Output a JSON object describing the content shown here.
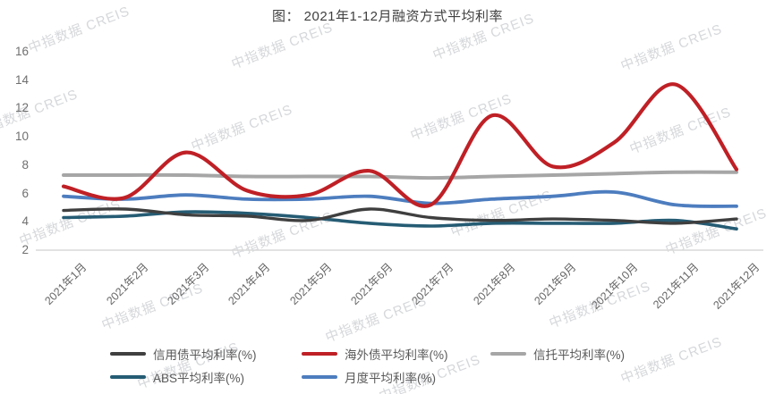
{
  "watermark": {
    "text": "中指数据 CREIS"
  },
  "chart_data": {
    "type": "line",
    "title": "图： 2021年1-12月融资方式平均利率",
    "categories": [
      "2021年1月",
      "2021年2月",
      "2021年3月",
      "2021年4月",
      "2021年5月",
      "2021年6月",
      "2021年7月",
      "2021年8月",
      "2021年9月",
      "2021年10月",
      "2021年11月",
      "2021年12月"
    ],
    "series": [
      {
        "name": "信用债平均利率(%)",
        "color": "#3f3f3f",
        "values": [
          4.8,
          4.9,
          4.5,
          4.4,
          4.1,
          4.9,
          4.3,
          4.1,
          4.2,
          4.1,
          3.9,
          4.2
        ]
      },
      {
        "name": "海外债平均利率(%)",
        "color": "#bf2026",
        "values": [
          6.5,
          5.7,
          8.9,
          6.2,
          5.9,
          7.6,
          5.2,
          11.5,
          7.9,
          9.6,
          13.7,
          7.7
        ]
      },
      {
        "name": "信托平均利率(%)",
        "color": "#a6a6a6",
        "values": [
          7.3,
          7.3,
          7.3,
          7.2,
          7.2,
          7.2,
          7.1,
          7.2,
          7.3,
          7.4,
          7.5,
          7.5
        ]
      },
      {
        "name": "ABS平均利率(%)",
        "color": "#255c74",
        "values": [
          4.3,
          4.4,
          4.7,
          4.6,
          4.3,
          3.9,
          3.7,
          3.9,
          3.9,
          3.9,
          4.1,
          3.5
        ]
      },
      {
        "name": "月度平均利率(%)",
        "color": "#4d7dbf",
        "values": [
          5.8,
          5.6,
          5.9,
          5.6,
          5.6,
          5.8,
          5.3,
          5.6,
          5.8,
          6.1,
          5.2,
          5.1
        ]
      }
    ],
    "ylim": [
      2,
      16
    ],
    "y_ticks": [
      16,
      14,
      12,
      10,
      8,
      6,
      4,
      2
    ],
    "xlabel": "",
    "ylabel": "",
    "grid": false,
    "smooth": true,
    "legend_position": "bottom"
  }
}
